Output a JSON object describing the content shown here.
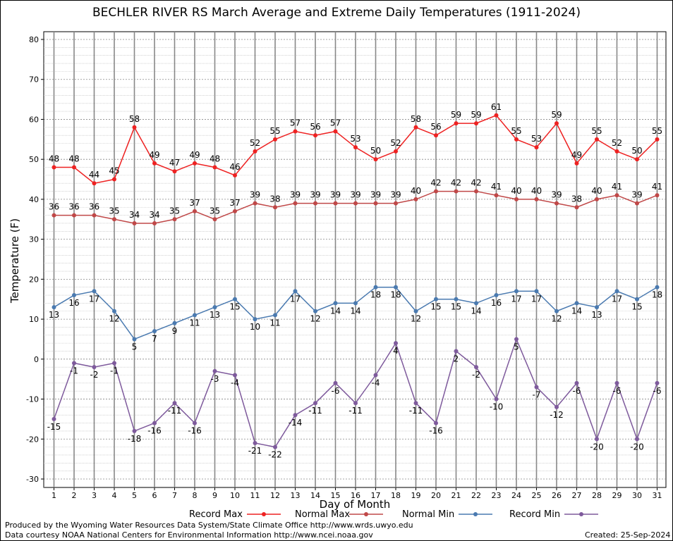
{
  "chart_data": {
    "type": "line",
    "title": "BECHLER RIVER RS March Average and Extreme Daily Temperatures (1911-2024)",
    "xlabel": "Day of Month",
    "ylabel": "Temperature (F)",
    "x": [
      1,
      2,
      3,
      4,
      5,
      6,
      7,
      8,
      9,
      10,
      11,
      12,
      13,
      14,
      15,
      16,
      17,
      18,
      19,
      20,
      21,
      22,
      23,
      24,
      25,
      26,
      27,
      28,
      29,
      30,
      31
    ],
    "ylim": [
      -30,
      80
    ],
    "yticks": [
      -30,
      -20,
      -10,
      0,
      10,
      20,
      30,
      40,
      50,
      60,
      70,
      80
    ],
    "grid": true,
    "legend_position": "bottom",
    "series": [
      {
        "name": "Record Max",
        "color": "#ee2222",
        "values": [
          48,
          48,
          44,
          45,
          58,
          49,
          47,
          49,
          48,
          46,
          52,
          55,
          57,
          56,
          57,
          53,
          50,
          52,
          58,
          56,
          59,
          59,
          61,
          55,
          53,
          59,
          49,
          55,
          52,
          50,
          55
        ]
      },
      {
        "name": "Normal Max",
        "color": "#c04848",
        "values": [
          36,
          36,
          36,
          35,
          34,
          34,
          35,
          37,
          35,
          37,
          39,
          38,
          39,
          39,
          39,
          39,
          39,
          39,
          40,
          42,
          42,
          42,
          41,
          40,
          40,
          39,
          38,
          40,
          41,
          39,
          41
        ]
      },
      {
        "name": "Normal Min",
        "color": "#4a7ab0",
        "values": [
          13,
          16,
          17,
          12,
          5,
          7,
          9,
          11,
          13,
          15,
          10,
          11,
          17,
          12,
          14,
          14,
          18,
          18,
          12,
          15,
          15,
          14,
          16,
          17,
          17,
          12,
          14,
          13,
          17,
          15,
          18
        ]
      },
      {
        "name": "Record Min",
        "color": "#7e5a9c",
        "values": [
          -15,
          -1,
          -2,
          -1,
          -18,
          -16,
          -11,
          -16,
          -3,
          -4,
          -21,
          -22,
          -14,
          -11,
          -6,
          -11,
          -4,
          4,
          -11,
          -16,
          2,
          -2,
          -10,
          5,
          -7,
          -12,
          -6,
          -20,
          -6,
          -20,
          -6
        ]
      }
    ]
  },
  "footer": {
    "produced_by": "Produced by the Wyoming Water Resources Data System/State Climate Office http://www.wrds.uwyo.edu",
    "data_courtesy": "Data courtesy NOAA National Centers for Environmental Information http://www.ncei.noaa.gov",
    "created": "Created:  25-Sep-2024"
  }
}
